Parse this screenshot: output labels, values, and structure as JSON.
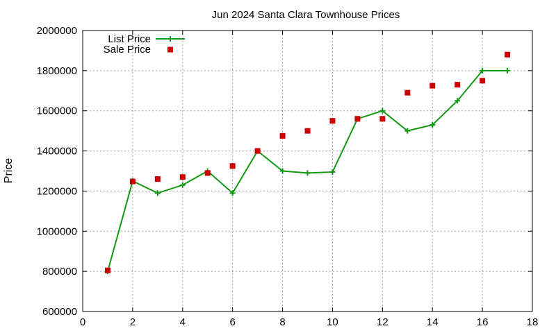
{
  "chart_data": {
    "type": "line",
    "title": "Jun 2024 Santa Clara Townhouse Prices",
    "xlabel": "",
    "ylabel": "Price",
    "xlim": [
      0,
      18
    ],
    "ylim": [
      600000,
      2000000
    ],
    "xticks": [
      0,
      2,
      4,
      6,
      8,
      10,
      12,
      14,
      16,
      18
    ],
    "yticks": [
      600000,
      800000,
      1000000,
      1200000,
      1400000,
      1600000,
      1800000,
      2000000
    ],
    "grid": true,
    "legend_position": "top-left",
    "series": [
      {
        "name": "List Price",
        "style": "line+cross",
        "color": "#119911",
        "x": [
          1,
          2,
          3,
          4,
          5,
          6,
          7,
          8,
          9,
          10,
          11,
          12,
          13,
          14,
          15,
          16,
          17
        ],
        "y": [
          800000,
          1250000,
          1190000,
          1230000,
          1300000,
          1190000,
          1400000,
          1300000,
          1290000,
          1295000,
          1560000,
          1600000,
          1500000,
          1530000,
          1650000,
          1800000,
          1800000
        ]
      },
      {
        "name": "Sale Price",
        "style": "square",
        "color": "#cc0000",
        "x": [
          1,
          2,
          3,
          4,
          5,
          6,
          7,
          8,
          9,
          10,
          11,
          12,
          13,
          14,
          15,
          16,
          17
        ],
        "y": [
          805000,
          1248000,
          1260000,
          1270000,
          1290000,
          1325000,
          1400000,
          1475000,
          1500000,
          1550000,
          1560000,
          1560000,
          1690000,
          1725000,
          1730000,
          1750000,
          1880000
        ]
      }
    ]
  }
}
